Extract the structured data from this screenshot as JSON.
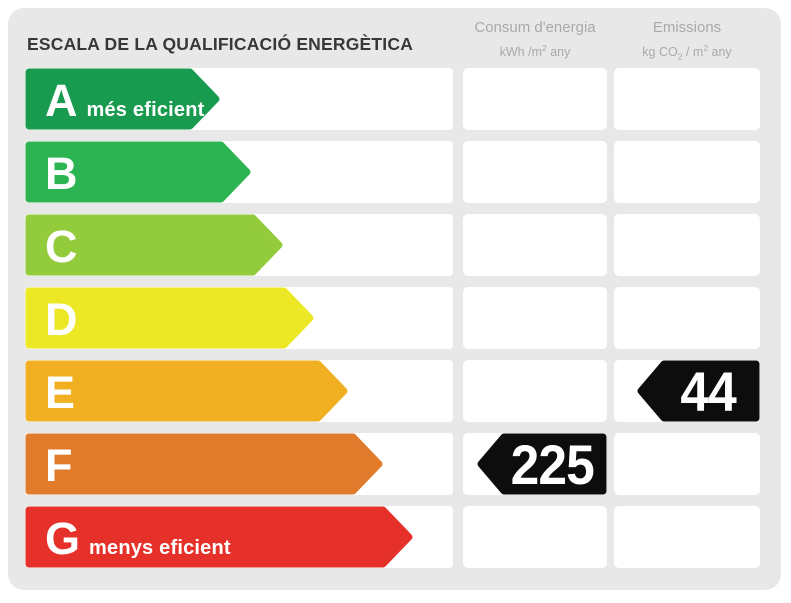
{
  "title": "ESCALA DE LA QUALIFICACIÓ ENERGÈTICA",
  "columns": {
    "consum": {
      "line1": "Consum d'energia",
      "unit_base": "kWh /m",
      "unit_sup": "2",
      "unit_tail": " any"
    },
    "emissions": {
      "line1": "Emissions",
      "unit_base": "kg CO",
      "unit_sub": "2",
      "unit_mid": " / m",
      "unit_sup": "2",
      "unit_tail": " any"
    }
  },
  "rows": [
    {
      "grade": "A",
      "note": "més eficient",
      "color": "#189b4e",
      "length": 195,
      "consum": "",
      "emissions": ""
    },
    {
      "grade": "B",
      "note": "",
      "color": "#2cb452",
      "length": 226,
      "consum": "",
      "emissions": ""
    },
    {
      "grade": "C",
      "note": "",
      "color": "#92cb3b",
      "length": 258,
      "consum": "",
      "emissions": ""
    },
    {
      "grade": "D",
      "note": "",
      "color": "#ece826",
      "length": 289,
      "consum": "",
      "emissions": ""
    },
    {
      "grade": "E",
      "note": "",
      "color": "#f0b021",
      "length": 323,
      "consum": "",
      "emissions": "44"
    },
    {
      "grade": "F",
      "note": "",
      "color": "#e07b2c",
      "length": 358,
      "consum": "225",
      "emissions": ""
    },
    {
      "grade": "G",
      "note": "menys eficient",
      "color": "#e5312a",
      "length": 388,
      "consum": "",
      "emissions": ""
    }
  ],
  "values": {
    "consum": {
      "value": "225",
      "grade": "F"
    },
    "emissions": {
      "value": "44",
      "grade": "E"
    }
  },
  "colors": {
    "page_bg": "#ffffff",
    "panel_bg": "#e8e8e8",
    "title_text": "#383838",
    "header_text": "#a9a9a9",
    "cell_bg": "#ffffff",
    "badge_bg": "#0d0d0d",
    "badge_text": "#ffffff"
  },
  "chart_data": {
    "type": "bar",
    "orientation": "horizontal",
    "title": "ESCALA DE LA QUALIFICACIÓ ENERGÈTICA",
    "categories": [
      "A",
      "B",
      "C",
      "D",
      "E",
      "F",
      "G"
    ],
    "category_notes": [
      "més eficient",
      "",
      "",
      "",
      "",
      "",
      "menys eficient"
    ],
    "bar_colors": [
      "#189b4e",
      "#2cb452",
      "#92cb3b",
      "#ece826",
      "#f0b021",
      "#e07b2c",
      "#e5312a"
    ],
    "bar_relative_lengths": [
      195,
      226,
      258,
      289,
      323,
      358,
      388
    ],
    "value_columns": [
      {
        "label": "Consum d'energia",
        "unit": "kWh /m2 any"
      },
      {
        "label": "Emissions",
        "unit": "kg CO2 / m2 any"
      }
    ],
    "annotations": [
      {
        "column": "Consum d'energia",
        "value": 225,
        "unit": "kWh /m2 any",
        "rating": "F"
      },
      {
        "column": "Emissions",
        "value": 44,
        "unit": "kg CO2 / m2 any",
        "rating": "E"
      }
    ],
    "legend_position": "none",
    "grid": false
  }
}
